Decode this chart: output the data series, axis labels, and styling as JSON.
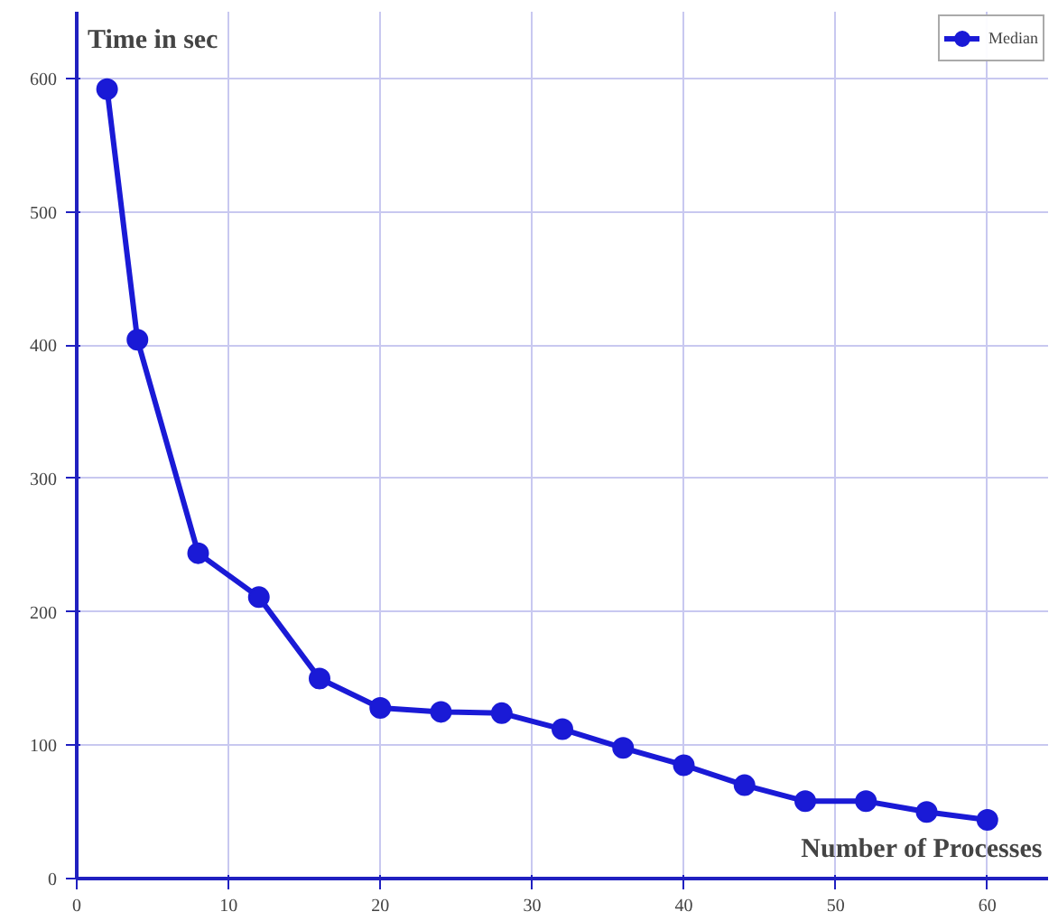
{
  "chart_data": {
    "type": "line",
    "xlabel": "Number of Processes",
    "ylabel": "Time in sec",
    "x": [
      2,
      4,
      8,
      12,
      16,
      20,
      24,
      28,
      32,
      36,
      40,
      44,
      48,
      52,
      56,
      60
    ],
    "series": [
      {
        "name": "Median",
        "color": "#1a1ad6",
        "values": [
          592,
          404,
          244,
          211,
          150,
          128,
          125,
          124,
          112,
          98,
          85,
          70,
          58,
          58,
          50,
          44
        ]
      }
    ],
    "xlim": [
      0,
      64
    ],
    "ylim": [
      0,
      650
    ],
    "xticks": [
      0,
      10,
      20,
      30,
      40,
      50,
      60
    ],
    "yticks": [
      0,
      100,
      200,
      300,
      400,
      500,
      600
    ],
    "grid": true,
    "legend": "top right",
    "marker": "circle",
    "line_style": "solid"
  }
}
